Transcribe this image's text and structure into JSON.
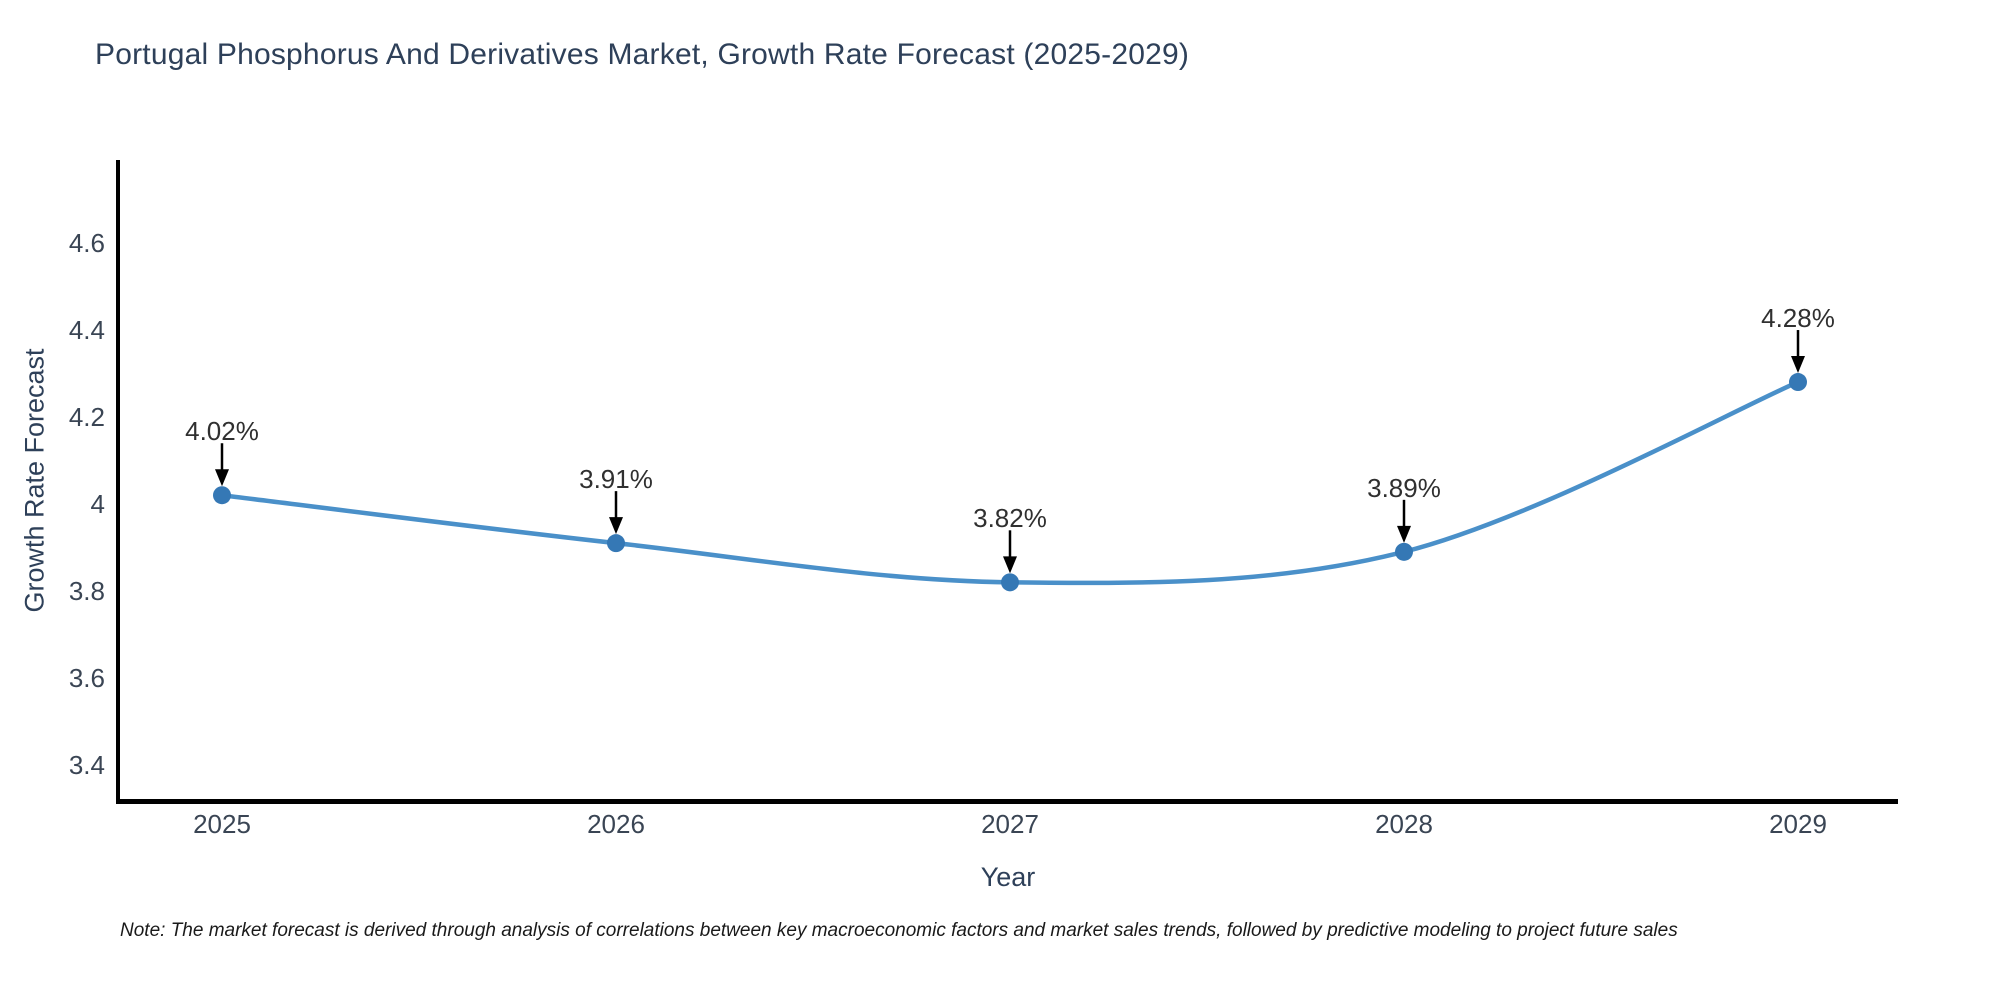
{
  "title": "Portugal Phosphorus And Derivatives Market, Growth Rate Forecast (2025-2029)",
  "note": "Note: The market forecast is derived through analysis of correlations between key macroeconomic factors and market sales trends, followed by predictive modeling to project future sales",
  "chart_data": {
    "type": "line",
    "title": "Portugal Phosphorus And Derivatives Market, Growth Rate Forecast (2025-2029)",
    "x": [
      2025,
      2026,
      2027,
      2028,
      2029
    ],
    "xticklabels": [
      "2025",
      "2026",
      "2027",
      "2028",
      "2029"
    ],
    "values": [
      4.02,
      3.91,
      3.82,
      3.89,
      4.28
    ],
    "point_labels": [
      "4.02%",
      "3.91%",
      "3.82%",
      "3.89%",
      "4.28%"
    ],
    "xlabel": "Year",
    "ylabel": "Growth Rate Forecast",
    "ytick_labels": [
      "3.4",
      "3.6",
      "3.8",
      "4",
      "4.2",
      "4.4",
      "4.6"
    ],
    "ylim": [
      3.32,
      4.79
    ],
    "grid": false,
    "legend": "none",
    "smooth": true,
    "annotation_arrows": "down-to-point"
  },
  "colors": {
    "background": "#ffffff",
    "title_text": "#2e4059",
    "axis_title_text": "#2e4059",
    "tick_text": "#3a4554",
    "annotation_text": "#303030",
    "line": "#4a90c9",
    "marker": "#3578b5",
    "arrow": "#000000",
    "spine": "#000000",
    "note_text": "#1a1a1a"
  }
}
